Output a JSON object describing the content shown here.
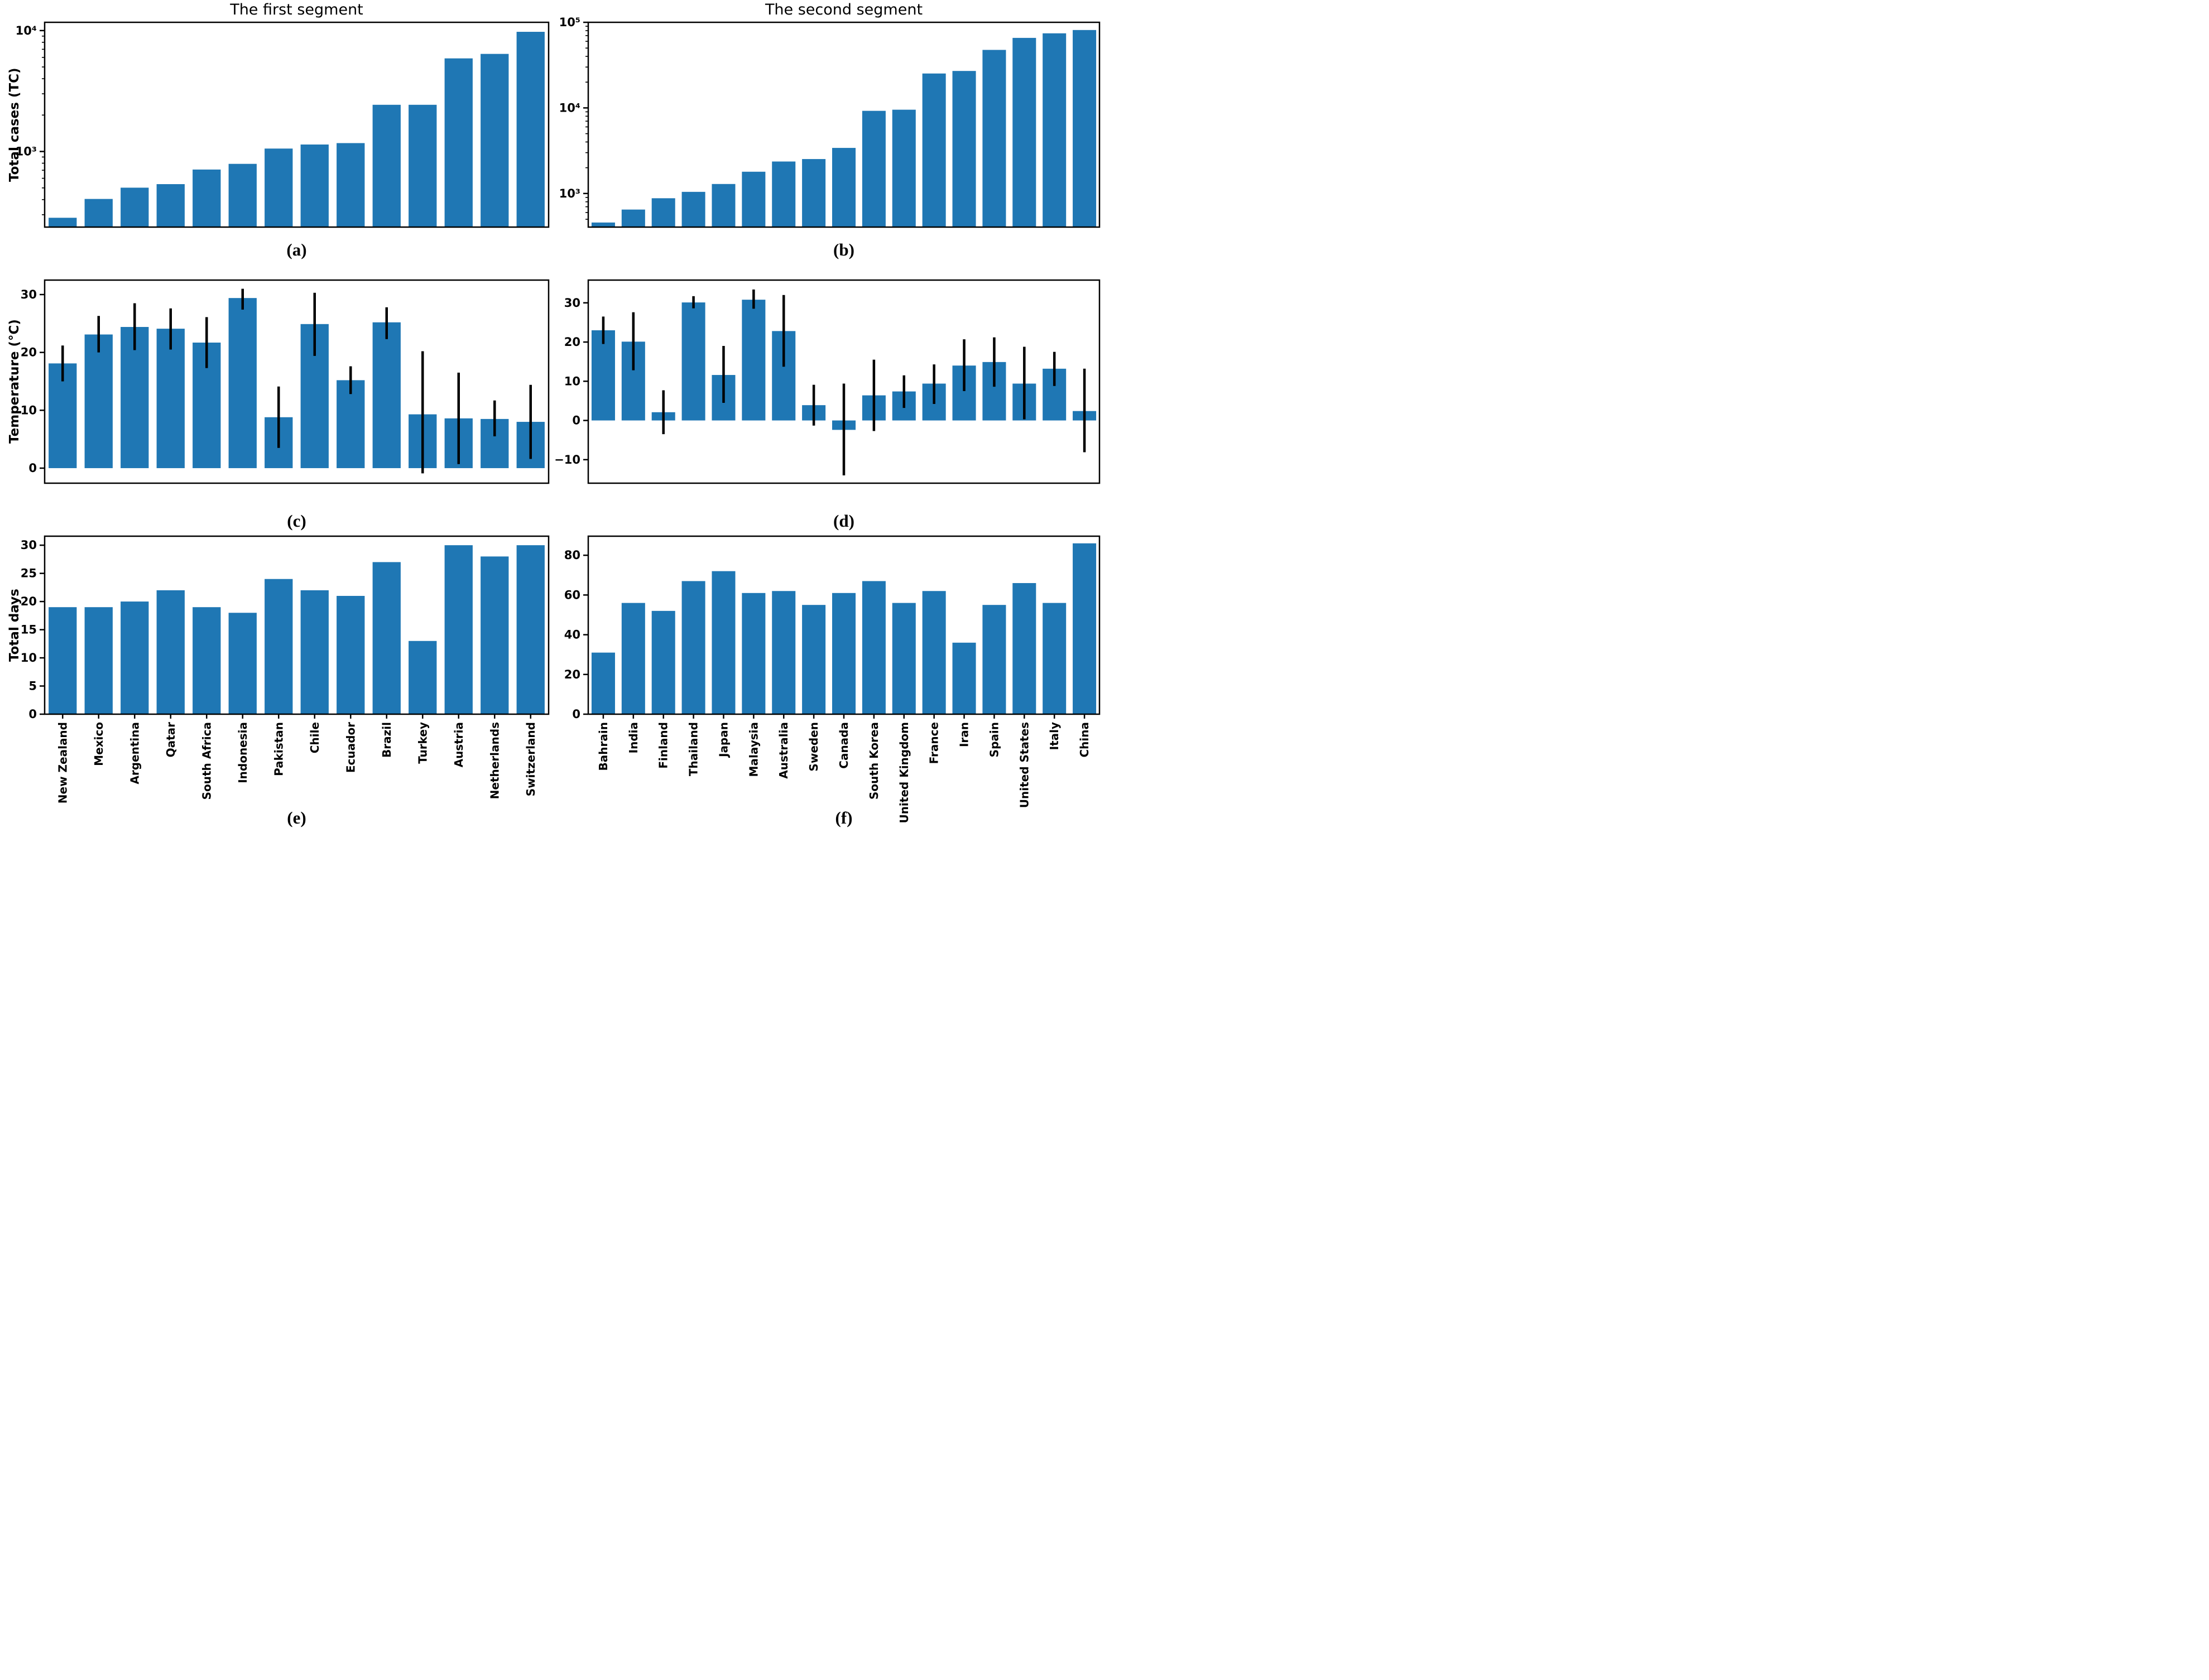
{
  "figure": {
    "bar_color": "#1f77b4",
    "error_color": "#000000",
    "axis_color": "#000000",
    "captions": {
      "a": "(a)",
      "b": "(b)",
      "c": "(c)",
      "d": "(d)",
      "e": "(e)",
      "f": "(f)"
    }
  },
  "chart_data": [
    {
      "id": "a",
      "type": "bar",
      "yscale": "log",
      "title": "The first segment",
      "ylabel": "Total cases (TC)",
      "grid": false,
      "legend": null,
      "categories": [
        "New Zealand",
        "Mexico",
        "Argentina",
        "Qatar",
        "South Africa",
        "Indonesia",
        "Pakistan",
        "Chile",
        "Ecuador",
        "Brazil",
        "Turkey",
        "Austria",
        "Netherlands",
        "Switzerland"
      ],
      "values": [
        283,
        405,
        502,
        537,
        709,
        790,
        1057,
        1142,
        1173,
        2433,
        2433,
        5888,
        6412,
        9765
      ],
      "ylim": [
        237,
        11700
      ],
      "yticks": [
        {
          "v": 1000,
          "label": "10³"
        },
        {
          "v": 10000,
          "label": "10⁴"
        }
      ],
      "show_xlabels": false
    },
    {
      "id": "b",
      "type": "bar",
      "yscale": "log",
      "title": "The second segment",
      "ylabel": null,
      "grid": false,
      "legend": null,
      "categories": [
        "Bahrain",
        "India",
        "Finland",
        "Thailand",
        "Japan",
        "Malaysia",
        "Australia",
        "Sweden",
        "Canada",
        "South Korea",
        "United Kingdom",
        "France",
        "Iran",
        "Spain",
        "United States",
        "Italy",
        "China"
      ],
      "values": [
        458,
        649,
        880,
        1045,
        1291,
        1796,
        2364,
        2526,
        3409,
        9241,
        9529,
        25233,
        27017,
        47610,
        65778,
        74386,
        81285
      ],
      "ylim": [
        405,
        100000
      ],
      "yticks": [
        {
          "v": 1000,
          "label": "10³"
        },
        {
          "v": 10000,
          "label": "10⁴"
        },
        {
          "v": 100000,
          "label": "10⁵"
        }
      ],
      "show_xlabels": false
    },
    {
      "id": "c",
      "type": "bar",
      "yscale": "linear",
      "title": null,
      "ylabel": "Temperature (°C)",
      "grid": false,
      "legend": null,
      "categories": [
        "New Zealand",
        "Mexico",
        "Argentina",
        "Qatar",
        "South Africa",
        "Indonesia",
        "Pakistan",
        "Chile",
        "Ecuador",
        "Brazil",
        "Turkey",
        "Austria",
        "Netherlands",
        "Switzerland"
      ],
      "values": [
        18.1,
        23.1,
        24.4,
        24.1,
        21.7,
        29.4,
        8.8,
        24.9,
        15.2,
        25.2,
        9.3,
        8.6,
        8.5,
        8.0
      ],
      "err_lo": [
        15.0,
        20.0,
        20.4,
        20.5,
        17.3,
        27.4,
        3.5,
        19.4,
        12.8,
        22.3,
        -0.9,
        0.7,
        5.5,
        1.6
      ],
      "err_hi": [
        21.2,
        26.3,
        28.5,
        27.6,
        26.1,
        31.0,
        14.1,
        30.3,
        17.6,
        27.8,
        20.2,
        16.5,
        11.7,
        14.4
      ],
      "ylim": [
        -2.6,
        32.5
      ],
      "yticks": [
        {
          "v": 0,
          "label": "0"
        },
        {
          "v": 10,
          "label": "10"
        },
        {
          "v": 20,
          "label": "20"
        },
        {
          "v": 30,
          "label": "30"
        }
      ],
      "show_xlabels": false
    },
    {
      "id": "d",
      "type": "bar",
      "yscale": "linear",
      "title": null,
      "ylabel": null,
      "grid": false,
      "legend": null,
      "categories": [
        "Bahrain",
        "India",
        "Finland",
        "Thailand",
        "Japan",
        "Malaysia",
        "Australia",
        "Sweden",
        "Canada",
        "South Korea",
        "United Kingdom",
        "France",
        "Iran",
        "Spain",
        "United States",
        "Italy",
        "China"
      ],
      "values": [
        23.0,
        20.1,
        2.1,
        30.1,
        11.6,
        30.8,
        22.8,
        3.9,
        -2.4,
        6.4,
        7.4,
        9.4,
        14.0,
        14.9,
        9.4,
        13.2,
        2.4
      ],
      "err_lo": [
        19.5,
        12.8,
        -3.5,
        28.6,
        4.5,
        28.5,
        13.7,
        -1.3,
        -14.0,
        -2.7,
        3.2,
        4.2,
        7.5,
        8.6,
        0.3,
        8.8,
        -8.1
      ],
      "err_hi": [
        26.5,
        27.6,
        7.7,
        31.7,
        19.0,
        33.4,
        32.0,
        9.1,
        9.4,
        15.5,
        11.5,
        14.3,
        20.7,
        21.2,
        18.8,
        17.5,
        13.2
      ],
      "ylim": [
        -16.0,
        35.8
      ],
      "yticks": [
        {
          "v": -10,
          "label": "−10"
        },
        {
          "v": 0,
          "label": "0"
        },
        {
          "v": 10,
          "label": "10"
        },
        {
          "v": 20,
          "label": "20"
        },
        {
          "v": 30,
          "label": "30"
        }
      ],
      "show_xlabels": false
    },
    {
      "id": "e",
      "type": "bar",
      "yscale": "linear",
      "title": null,
      "ylabel": "Total days",
      "grid": false,
      "legend": null,
      "categories": [
        "New Zealand",
        "Mexico",
        "Argentina",
        "Qatar",
        "South Africa",
        "Indonesia",
        "Pakistan",
        "Chile",
        "Ecuador",
        "Brazil",
        "Turkey",
        "Austria",
        "Netherlands",
        "Switzerland"
      ],
      "values": [
        19,
        19,
        20,
        22,
        19,
        18,
        24,
        22,
        21,
        27,
        13,
        30,
        28,
        30
      ],
      "ylim": [
        0,
        31.6
      ],
      "yticks": [
        {
          "v": 0,
          "label": "0"
        },
        {
          "v": 5,
          "label": "5"
        },
        {
          "v": 10,
          "label": "10"
        },
        {
          "v": 15,
          "label": "15"
        },
        {
          "v": 20,
          "label": "20"
        },
        {
          "v": 25,
          "label": "25"
        },
        {
          "v": 30,
          "label": "30"
        }
      ],
      "show_xlabels": true
    },
    {
      "id": "f",
      "type": "bar",
      "yscale": "linear",
      "title": null,
      "ylabel": null,
      "grid": false,
      "legend": null,
      "categories": [
        "Bahrain",
        "India",
        "Finland",
        "Thailand",
        "Japan",
        "Malaysia",
        "Australia",
        "Sweden",
        "Canada",
        "South Korea",
        "United Kingdom",
        "France",
        "Iran",
        "Spain",
        "United States",
        "Italy",
        "China"
      ],
      "values": [
        31,
        56,
        52,
        67,
        72,
        61,
        62,
        55,
        61,
        67,
        56,
        62,
        36,
        55,
        66,
        56,
        86
      ],
      "ylim": [
        0,
        89.6
      ],
      "yticks": [
        {
          "v": 0,
          "label": "0"
        },
        {
          "v": 20,
          "label": "20"
        },
        {
          "v": 40,
          "label": "40"
        },
        {
          "v": 60,
          "label": "60"
        },
        {
          "v": 80,
          "label": "80"
        }
      ],
      "show_xlabels": true
    }
  ]
}
